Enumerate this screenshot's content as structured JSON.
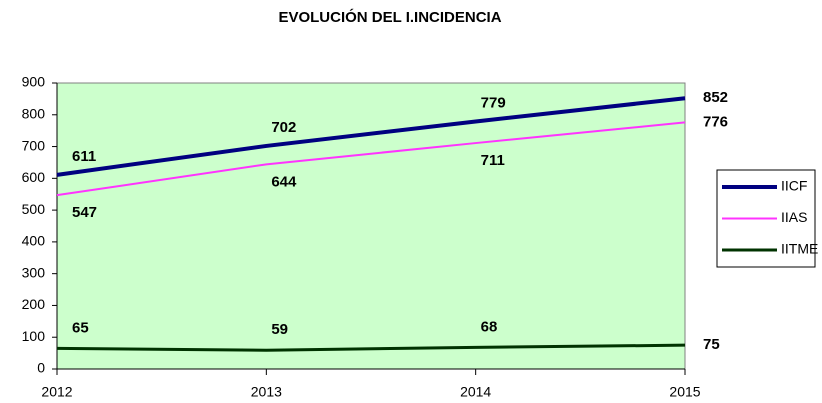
{
  "chart_data": {
    "type": "line",
    "title": "EVOLUCIÓN DEL I.INCIDENCIA",
    "x": [
      2012,
      2013,
      2014,
      2015
    ],
    "series": [
      {
        "name": "IICF",
        "color": "#000080",
        "values": [
          611,
          702,
          779,
          852
        ]
      },
      {
        "name": "IIAS",
        "color": "#ff33ff",
        "values": [
          547,
          644,
          711,
          776
        ]
      },
      {
        "name": "IITME",
        "color": "#003300",
        "values": [
          65,
          59,
          68,
          75
        ]
      }
    ],
    "xlim": [
      2012,
      2015
    ],
    "xticks": [
      2012,
      2013,
      2014,
      2015
    ],
    "ylim": [
      0,
      900
    ],
    "yticks": [
      0,
      100,
      200,
      300,
      400,
      500,
      600,
      700,
      800,
      900
    ],
    "plot_background": "#ccffcc",
    "legend": "right"
  }
}
